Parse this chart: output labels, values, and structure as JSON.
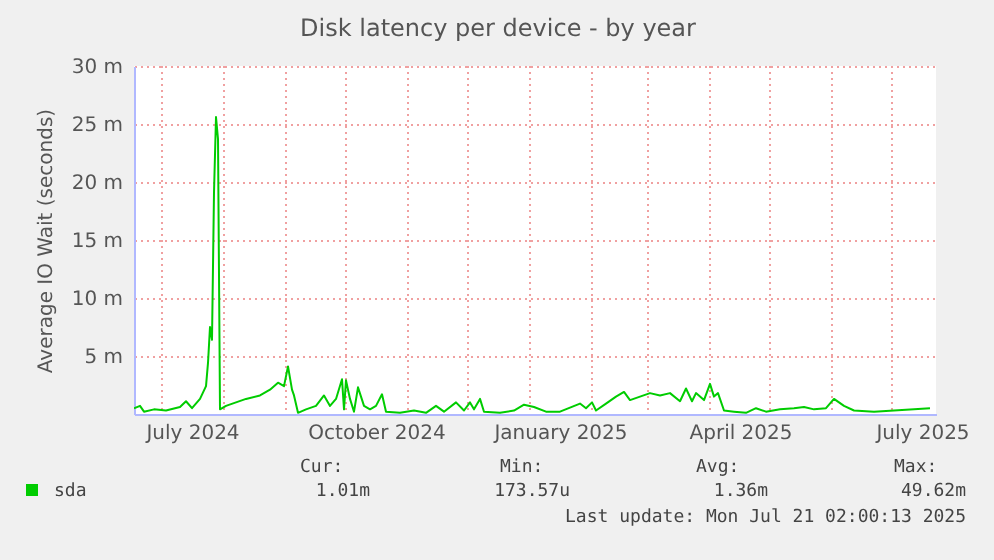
{
  "chart_data": {
    "type": "line",
    "title": "Disk latency per device - by year",
    "ylabel": "Average IO Wait (seconds)",
    "xlim": [
      "2024-06-17",
      "2025-07-23"
    ],
    "ylim": [
      0,
      30
    ],
    "xticks": [
      {
        "value": "2024-07-01",
        "label": null
      },
      {
        "value": "2024-07-16",
        "label": "July 2024"
      },
      {
        "value": "2024-08-01",
        "label": null
      },
      {
        "value": "2024-09-01",
        "label": null
      },
      {
        "value": "2024-10-01",
        "label": null
      },
      {
        "value": "2024-10-16",
        "label": "October 2024"
      },
      {
        "value": "2024-11-01",
        "label": null
      },
      {
        "value": "2024-12-01",
        "label": null
      },
      {
        "value": "2025-01-01",
        "label": null
      },
      {
        "value": "2025-01-16",
        "label": "January 2025"
      },
      {
        "value": "2025-02-01",
        "label": null
      },
      {
        "value": "2025-03-01",
        "label": null
      },
      {
        "value": "2025-04-01",
        "label": null
      },
      {
        "value": "2025-04-16",
        "label": "April 2025"
      },
      {
        "value": "2025-05-01",
        "label": null
      },
      {
        "value": "2025-06-01",
        "label": null
      },
      {
        "value": "2025-07-01",
        "label": null
      },
      {
        "value": "2025-07-16",
        "label": "July 2025"
      }
    ],
    "yticks": [
      {
        "value": 5,
        "label": "5 m"
      },
      {
        "value": 10,
        "label": "10 m"
      },
      {
        "value": 15,
        "label": "15 m"
      },
      {
        "value": 20,
        "label": "20 m"
      },
      {
        "value": 25,
        "label": "25 m"
      },
      {
        "value": 30,
        "label": "30 m"
      }
    ],
    "grid": true,
    "legend": "bottom",
    "annotations": [
      "Cur:",
      "Min:",
      "Avg:",
      "Max:",
      "1.01m",
      "173.57u",
      "1.36m",
      "49.62m",
      "Last update: Mon Jul 21 02:00:13 2025"
    ],
    "x": [
      "2024-06-17",
      "2024-06-20",
      "2024-06-22",
      "2024-06-27",
      "2024-07-03",
      "2024-07-10",
      "2024-07-13",
      "2024-07-16",
      "2024-07-20",
      "2024-07-23",
      "2024-07-24",
      "2024-07-25",
      "2024-07-26",
      "2024-07-27",
      "2024-07-28",
      "2024-07-29",
      "2024-07-30",
      "2024-08-02",
      "2024-08-07",
      "2024-08-12",
      "2024-08-19",
      "2024-08-24",
      "2024-08-28",
      "2024-08-31",
      "2024-09-02",
      "2024-09-04",
      "2024-09-05",
      "2024-09-07",
      "2024-09-11",
      "2024-09-16",
      "2024-09-20",
      "2024-09-23",
      "2024-09-26",
      "2024-09-29",
      "2024-09-30",
      "2024-10-01",
      "2024-10-03",
      "2024-10-05",
      "2024-10-07",
      "2024-10-10",
      "2024-10-13",
      "2024-10-16",
      "2024-10-19",
      "2024-10-21",
      "2024-10-28",
      "2024-11-04",
      "2024-11-10",
      "2024-11-15",
      "2024-11-19",
      "2024-11-25",
      "2024-11-29",
      "2024-12-02",
      "2024-12-04",
      "2024-12-07",
      "2024-12-09",
      "2024-12-17",
      "2024-12-24",
      "2024-12-29",
      "2025-01-03",
      "2025-01-09",
      "2025-01-16",
      "2025-01-26",
      "2025-01-29",
      "2025-02-01",
      "2025-02-03",
      "2025-02-08",
      "2025-02-13",
      "2025-02-17",
      "2025-02-20",
      "2025-02-25",
      "2025-03-02",
      "2025-03-07",
      "2025-03-12",
      "2025-03-17",
      "2025-03-20",
      "2025-03-23",
      "2025-03-25",
      "2025-03-29",
      "2025-04-01",
      "2025-04-03",
      "2025-04-05",
      "2025-04-08",
      "2025-04-13",
      "2025-04-19",
      "2025-04-24",
      "2025-04-29",
      "2025-05-06",
      "2025-05-13",
      "2025-05-18",
      "2025-05-23",
      "2025-05-29",
      "2025-06-02",
      "2025-06-07",
      "2025-06-12",
      "2025-06-22",
      "2025-07-02",
      "2025-07-12",
      "2025-07-20"
    ],
    "series": [
      {
        "name": "sda",
        "color": "#00cc00",
        "values": [
          0.5,
          0.7,
          0.2,
          0.4,
          0.3,
          0.6,
          1.1,
          0.5,
          1.3,
          2.4,
          4.4,
          7.5,
          6.4,
          19.1,
          25.6,
          23.7,
          0.4,
          0.7,
          1.0,
          1.3,
          1.6,
          2.1,
          2.7,
          2.4,
          4.1,
          2.1,
          1.6,
          0.1,
          0.4,
          0.7,
          1.6,
          0.7,
          1.3,
          3.0,
          0.4,
          2.9,
          1.3,
          0.2,
          2.3,
          0.7,
          0.4,
          0.7,
          1.7,
          0.2,
          0.1,
          0.3,
          0.1,
          0.7,
          0.2,
          1.0,
          0.3,
          1.0,
          0.4,
          1.3,
          0.2,
          0.1,
          0.3,
          0.8,
          0.6,
          0.2,
          0.2,
          0.9,
          0.5,
          1.0,
          0.3,
          0.9,
          1.5,
          1.9,
          1.2,
          1.5,
          1.8,
          1.6,
          1.8,
          1.1,
          2.2,
          1.1,
          1.8,
          1.2,
          2.6,
          1.5,
          1.8,
          0.3,
          0.2,
          0.1,
          0.5,
          0.2,
          0.4,
          0.5,
          0.6,
          0.4,
          0.5,
          1.3,
          0.7,
          0.3,
          0.2,
          0.3,
          0.4,
          0.5
        ]
      }
    ]
  }
}
